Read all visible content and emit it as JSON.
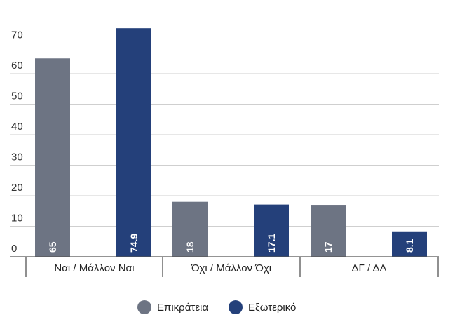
{
  "colors": {
    "domestic": "#6d7483",
    "abroad": "#24407a"
  },
  "chart_data": {
    "type": "bar",
    "categories": [
      "Ναι / Μάλλον Ναι",
      "Όχι / Μάλλον Όχι",
      "ΔΓ / ΔΑ"
    ],
    "series": [
      {
        "name": "Επικράτεια",
        "values": [
          65,
          18,
          17
        ],
        "labels": [
          "65",
          "18",
          "17"
        ]
      },
      {
        "name": "Εξωτερικό",
        "values": [
          74.9,
          17.1,
          8.1
        ],
        "labels": [
          "74.9",
          "17.1",
          "8.1"
        ]
      }
    ],
    "ylim": [
      0,
      70
    ],
    "yticks": [
      "0",
      "10",
      "20",
      "30",
      "40",
      "50",
      "60",
      "70"
    ],
    "grid": true,
    "legend": "bottom-center",
    "title": "",
    "xlabel": "",
    "ylabel": ""
  }
}
